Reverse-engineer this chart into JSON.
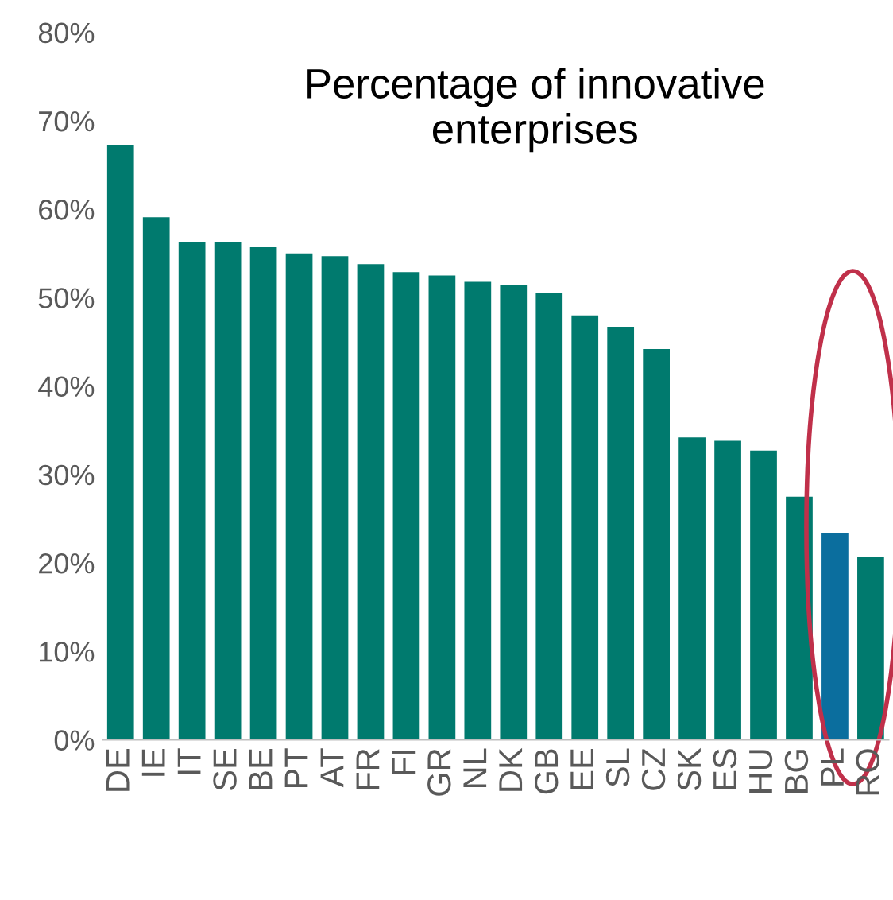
{
  "chart_data": {
    "type": "bar",
    "title": "Percentage of innovative\nenterprises",
    "categories": [
      "DE",
      "IE",
      "IT",
      "SE",
      "BE",
      "PT",
      "AT",
      "FR",
      "FI",
      "GR",
      "NL",
      "DK",
      "GB",
      "EE",
      "SL",
      "CZ",
      "SK",
      "ES",
      "HU",
      "BG",
      "PL",
      "RO"
    ],
    "values": [
      67.2,
      59.1,
      56.3,
      56.3,
      55.7,
      55.0,
      54.7,
      53.8,
      52.9,
      52.5,
      51.8,
      51.4,
      50.5,
      48.0,
      46.7,
      44.2,
      34.2,
      33.8,
      32.7,
      27.5,
      23.4,
      20.7
    ],
    "colors": [
      "#007a6e",
      "#007a6e",
      "#007a6e",
      "#007a6e",
      "#007a6e",
      "#007a6e",
      "#007a6e",
      "#007a6e",
      "#007a6e",
      "#007a6e",
      "#007a6e",
      "#007a6e",
      "#007a6e",
      "#007a6e",
      "#007a6e",
      "#007a6e",
      "#007a6e",
      "#007a6e",
      "#007a6e",
      "#007a6e",
      "#0b6e9e",
      "#007a6e"
    ],
    "ylim": [
      0,
      80
    ],
    "yticks": [
      {
        "value": 0,
        "label": "0%"
      },
      {
        "value": 10,
        "label": "10%"
      },
      {
        "value": 20,
        "label": "20%"
      },
      {
        "value": 30,
        "label": "30%"
      },
      {
        "value": 40,
        "label": "40%"
      },
      {
        "value": 50,
        "label": "50%"
      },
      {
        "value": 60,
        "label": "60%"
      },
      {
        "value": 70,
        "label": "70%"
      },
      {
        "value": 80,
        "label": "80%"
      }
    ],
    "grid": false,
    "legend": false
  }
}
